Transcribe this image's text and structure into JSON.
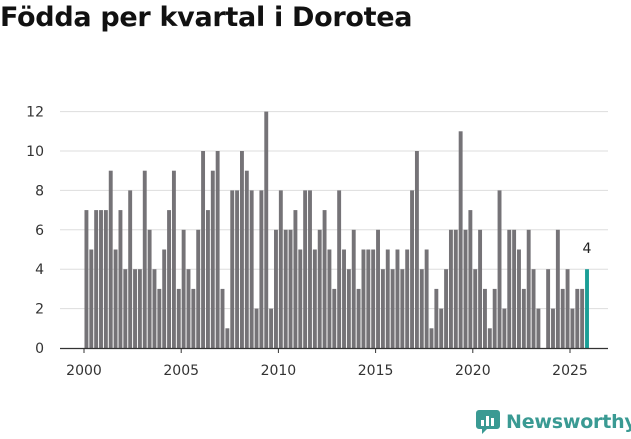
{
  "title": "Födda per kvartal i Dorotea",
  "brand": {
    "name": "Newsworthy",
    "color": "#3a9a93"
  },
  "colors": {
    "bar": "#757377",
    "highlight": "#1a9e96",
    "grid": "#dddddd",
    "axis": "#333333"
  },
  "chart_data": {
    "type": "bar",
    "title": "Födda per kvartal i Dorotea",
    "xlabel": "",
    "ylabel": "",
    "ylim": [
      0,
      12
    ],
    "y_ticks": [
      0,
      2,
      4,
      6,
      8,
      10,
      12
    ],
    "x_tick_labels": [
      "2000",
      "2005",
      "2010",
      "2015",
      "2020",
      "2025"
    ],
    "start": {
      "year": 2000,
      "quarter": 1
    },
    "unit": "quarter",
    "values": [
      7,
      5,
      7,
      7,
      7,
      9,
      5,
      7,
      4,
      8,
      4,
      4,
      9,
      6,
      4,
      3,
      5,
      7,
      9,
      3,
      6,
      4,
      3,
      6,
      10,
      7,
      9,
      10,
      3,
      1,
      8,
      8,
      10,
      9,
      8,
      2,
      8,
      12,
      2,
      6,
      8,
      6,
      6,
      7,
      5,
      8,
      8,
      5,
      6,
      7,
      5,
      3,
      8,
      5,
      4,
      6,
      3,
      5,
      5,
      5,
      6,
      4,
      5,
      4,
      5,
      4,
      5,
      8,
      10,
      4,
      5,
      1,
      3,
      2,
      4,
      6,
      6,
      11,
      6,
      7,
      4,
      6,
      3,
      1,
      3,
      8,
      2,
      6,
      6,
      5,
      3,
      6,
      4,
      2,
      0,
      4,
      2,
      6,
      3,
      4,
      2,
      3,
      3,
      4
    ],
    "highlight": {
      "label": "2025 Q4",
      "value": 4,
      "annotation": "4"
    }
  }
}
